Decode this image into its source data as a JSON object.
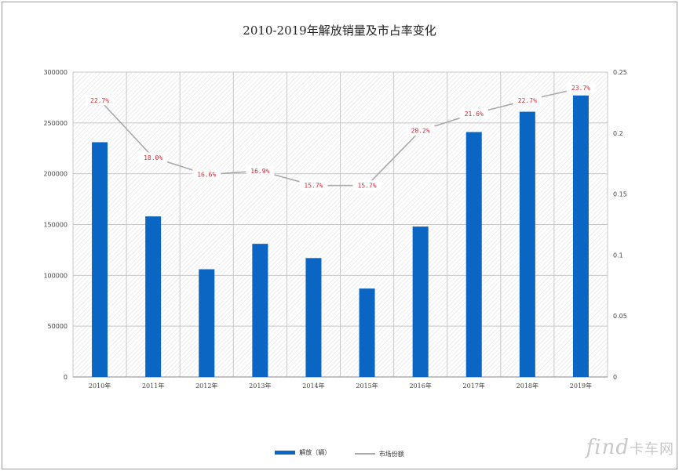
{
  "chart_data": {
    "type": "bar",
    "title": "2010-2019年解放销量及市占率变化",
    "categories": [
      "2010年",
      "2011年",
      "2012年",
      "2013年",
      "2014年",
      "2015年",
      "2016年",
      "2017年",
      "2018年",
      "2019年"
    ],
    "series": [
      {
        "name": "解放（辆）",
        "type": "bar",
        "axis": "left",
        "values": [
          231000,
          158000,
          106000,
          131000,
          117000,
          87000,
          148000,
          241000,
          261000,
          277000
        ]
      },
      {
        "name": "市场份额",
        "type": "line",
        "axis": "right",
        "values": [
          0.227,
          0.18,
          0.166,
          0.169,
          0.157,
          0.157,
          0.202,
          0.216,
          0.227,
          0.237
        ]
      }
    ],
    "data_labels": [
      "22.7%",
      "18.0%",
      "16.6%",
      "16.9%",
      "15.7%",
      "15.7%",
      "20.2%",
      "21.6%",
      "22.7%",
      "23.7%"
    ],
    "y_left": {
      "ylim": [
        0,
        300000
      ],
      "ticks": [
        "0",
        "50000",
        "100000",
        "150000",
        "200000",
        "250000",
        "300000"
      ]
    },
    "y_right": {
      "ylim": [
        0,
        0.25
      ],
      "ticks": [
        "0",
        "0.05",
        "0.1",
        "0.15",
        "0.2",
        "0.25"
      ]
    },
    "grid": true,
    "legend_position": "bottom",
    "colors": {
      "bar": "#0a66c2",
      "line": "#a9a9a9",
      "label": "#e8202a"
    }
  },
  "watermark": {
    "text": "find",
    "suffix": "卡车网"
  }
}
